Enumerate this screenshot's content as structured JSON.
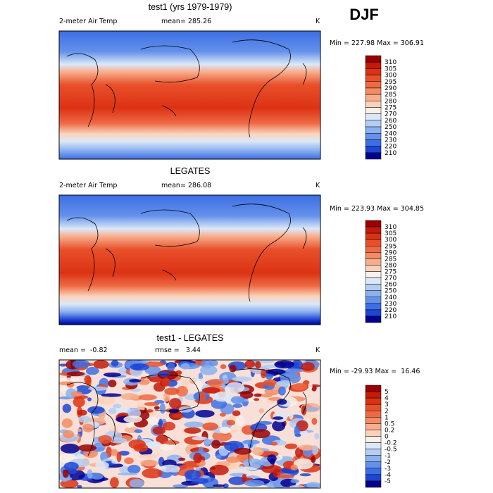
{
  "figure": {
    "season": "DJF",
    "panels": [
      {
        "title": "test1 (yrs 1979-1979)",
        "left": "2-meter Air Temp",
        "middle": "mean= 285.26",
        "units": "K",
        "range": "Min = 227.98 Max = 306.91",
        "colorbar": {
          "labels": [
            "310",
            "305",
            "300",
            "295",
            "290",
            "285",
            "280",
            "275",
            "270",
            "260",
            "250",
            "240",
            "230",
            "220",
            "210"
          ],
          "colors": [
            "#990000",
            "#c31a0a",
            "#dc3214",
            "#e8502a",
            "#ee6a44",
            "#f48b64",
            "#f8ad8c",
            "#fbd2b8",
            "#f8f0ea",
            "#dce8f8",
            "#b4cdf5",
            "#8cb1f0",
            "#6491ea",
            "#3c6ee4",
            "#1e46d4",
            "#000090"
          ]
        }
      },
      {
        "title": "LEGATES",
        "left": "2-meter Air Temp",
        "middle": "mean= 286.08",
        "units": "K",
        "range": "Min = 223.93 Max = 304.85",
        "colorbar": {
          "labels": [
            "310",
            "305",
            "300",
            "295",
            "290",
            "285",
            "280",
            "275",
            "270",
            "260",
            "250",
            "240",
            "230",
            "220",
            "210"
          ],
          "colors": [
            "#990000",
            "#c31a0a",
            "#dc3214",
            "#e8502a",
            "#ee6a44",
            "#f48b64",
            "#f8ad8c",
            "#fbd2b8",
            "#f8f0ea",
            "#dce8f8",
            "#b4cdf5",
            "#8cb1f0",
            "#6491ea",
            "#3c6ee4",
            "#1e46d4",
            "#000090"
          ]
        }
      },
      {
        "title": "test1 - LEGATES",
        "left": "mean =  -0.82",
        "middle": "rmse =   3.44",
        "units": "K",
        "range": "Min = -29.93 Max =  16.46",
        "colorbar": {
          "labels": [
            "5",
            "4",
            "3",
            "2",
            "1",
            "0.5",
            "0.2",
            "0",
            "-0.2",
            "-0.5",
            "-1",
            "-2",
            "-3",
            "-4",
            "-5"
          ],
          "colors": [
            "#990000",
            "#c31a0a",
            "#dc3214",
            "#e8502a",
            "#ee6a44",
            "#f48b64",
            "#f8ad8c",
            "#fbd2b8",
            "#f8f0ea",
            "#dce8f8",
            "#b4cdf5",
            "#8cb1f0",
            "#6491ea",
            "#3c6ee4",
            "#1e46d4",
            "#000090"
          ]
        }
      }
    ]
  }
}
